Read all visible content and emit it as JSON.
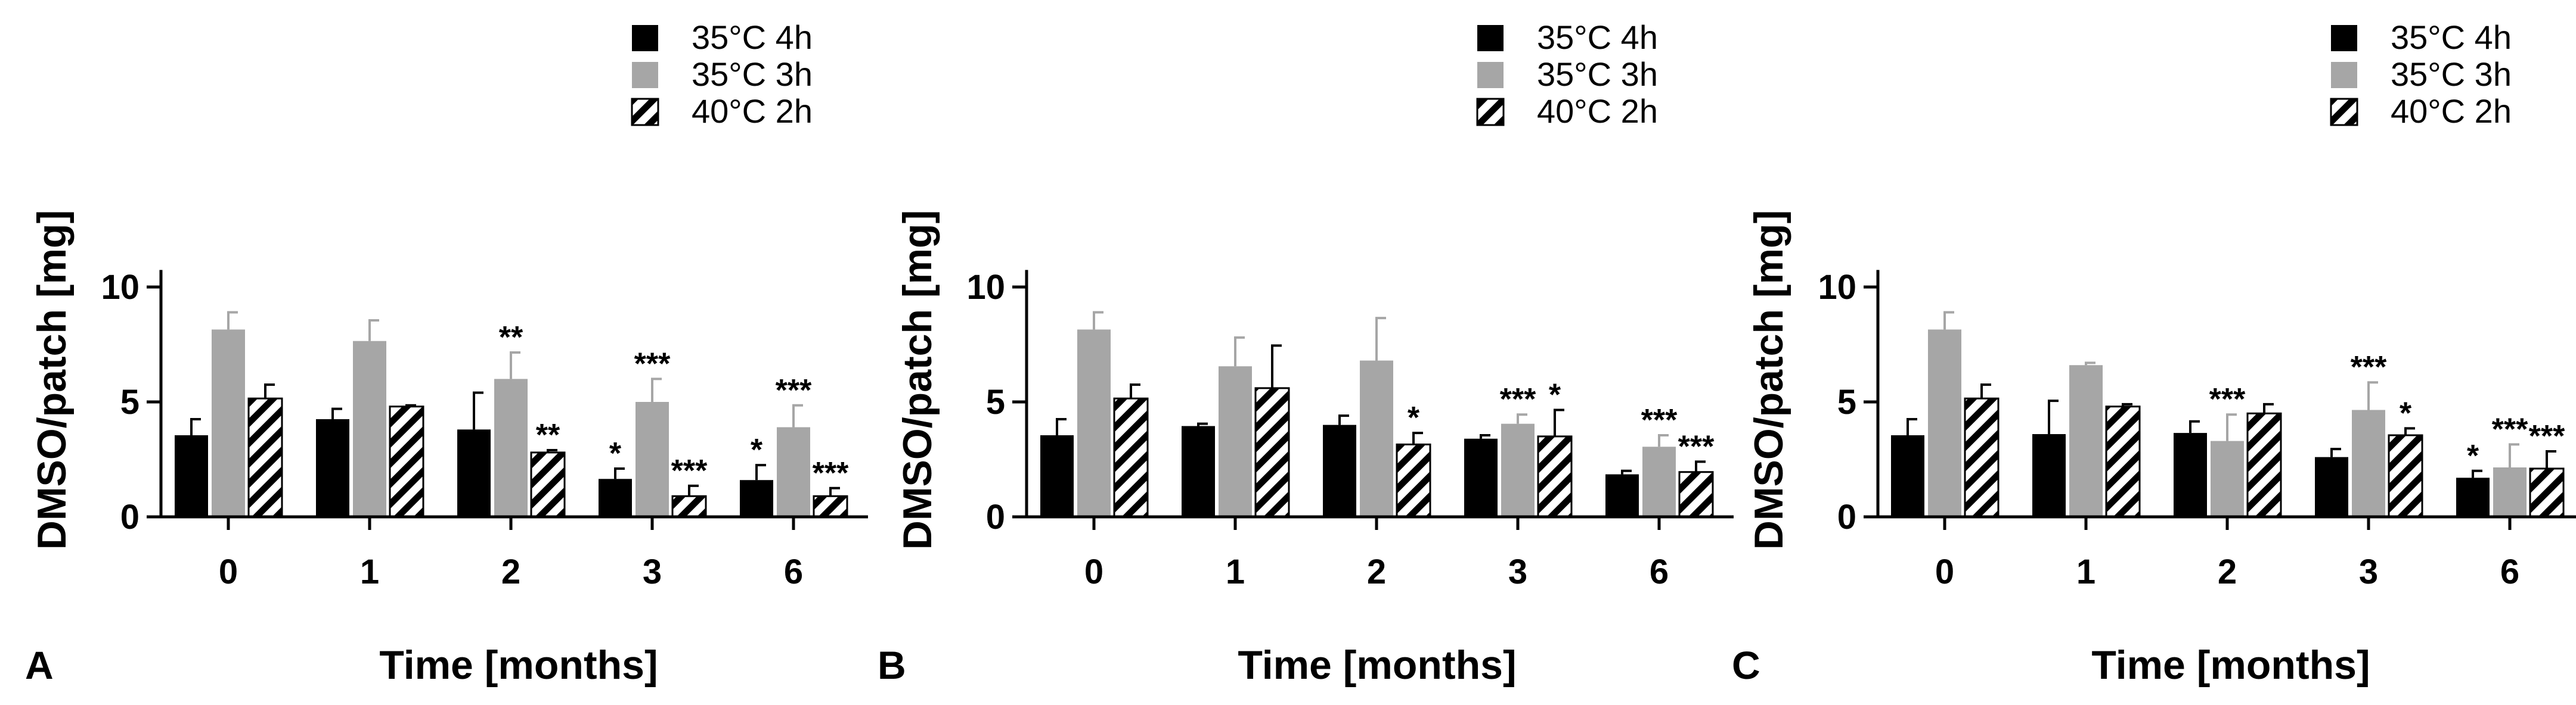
{
  "colors": {
    "s1": "#000000",
    "s2": "#a6a6a6",
    "s3_stripe": "#000000",
    "s3_bg": "#ffffff"
  },
  "chart_data": [
    {
      "type": "bar",
      "panel": "A",
      "xlabel": "Time [months]",
      "ylabel": "DMSO/patch [mg]",
      "ylim": [
        0,
        11
      ],
      "yticks": [
        "0",
        "5",
        "10"
      ],
      "categories": [
        "0",
        "1",
        "2",
        "3",
        "6"
      ],
      "series": [
        {
          "name": "35°C 4h",
          "values": [
            3.55,
            4.25,
            3.8,
            1.65,
            1.6
          ],
          "errors": [
            0.7,
            0.45,
            1.6,
            0.45,
            0.65
          ],
          "sig": [
            "",
            "",
            "",
            "*",
            "*"
          ]
        },
        {
          "name": "35°C 3h",
          "values": [
            8.15,
            7.65,
            6.0,
            5.0,
            3.9
          ],
          "errors": [
            0.75,
            0.9,
            1.15,
            1.0,
            0.95
          ],
          "sig": [
            "",
            "",
            "**",
            "***",
            "***"
          ]
        },
        {
          "name": "40°C 2h",
          "values": [
            5.15,
            4.8,
            2.8,
            0.9,
            0.9
          ],
          "errors": [
            0.6,
            0.05,
            0.1,
            0.45,
            0.35
          ],
          "sig": [
            "",
            "",
            "**",
            "***",
            "***"
          ]
        }
      ]
    },
    {
      "type": "bar",
      "panel": "B",
      "xlabel": "Time [months]",
      "ylabel": "DMSO/patch [mg]",
      "ylim": [
        0,
        11
      ],
      "yticks": [
        "0",
        "5",
        "10"
      ],
      "categories": [
        "0",
        "1",
        "2",
        "3",
        "6"
      ],
      "series": [
        {
          "name": "35°C 4h",
          "values": [
            3.55,
            3.95,
            4.0,
            3.4,
            1.85
          ],
          "errors": [
            0.7,
            0.1,
            0.4,
            0.15,
            0.15
          ],
          "sig": [
            "",
            "",
            "",
            "",
            ""
          ]
        },
        {
          "name": "35°C 3h",
          "values": [
            8.15,
            6.55,
            6.8,
            4.05,
            3.05
          ],
          "errors": [
            0.75,
            1.25,
            1.85,
            0.4,
            0.5
          ],
          "sig": [
            "",
            "",
            "",
            "***",
            "***"
          ]
        },
        {
          "name": "40°C 2h",
          "values": [
            5.15,
            5.6,
            3.15,
            3.5,
            1.95
          ],
          "errors": [
            0.6,
            1.85,
            0.5,
            1.15,
            0.45
          ],
          "sig": [
            "",
            "",
            "*",
            "*",
            "***"
          ]
        }
      ]
    },
    {
      "type": "bar",
      "panel": "C",
      "xlabel": "Time [months]",
      "ylabel": "DMSO/patch [mg]",
      "ylim": [
        0,
        11
      ],
      "yticks": [
        "0",
        "5",
        "10"
      ],
      "categories": [
        "0",
        "1",
        "2",
        "3",
        "6"
      ],
      "series": [
        {
          "name": "35°C 4h",
          "values": [
            3.55,
            3.6,
            3.65,
            2.6,
            1.7
          ],
          "errors": [
            0.7,
            1.45,
            0.5,
            0.35,
            0.3
          ],
          "sig": [
            "",
            "",
            "",
            "",
            "*"
          ]
        },
        {
          "name": "35°C 3h",
          "values": [
            8.15,
            6.6,
            3.3,
            4.65,
            2.15
          ],
          "errors": [
            0.75,
            0.1,
            1.15,
            1.2,
            1.0
          ],
          "sig": [
            "",
            "",
            "***",
            "***",
            "***"
          ]
        },
        {
          "name": "40°C 2h",
          "values": [
            5.15,
            4.8,
            4.5,
            3.55,
            2.1
          ],
          "errors": [
            0.6,
            0.1,
            0.4,
            0.3,
            0.75
          ],
          "sig": [
            "",
            "",
            "",
            "*",
            "***"
          ]
        }
      ]
    }
  ]
}
